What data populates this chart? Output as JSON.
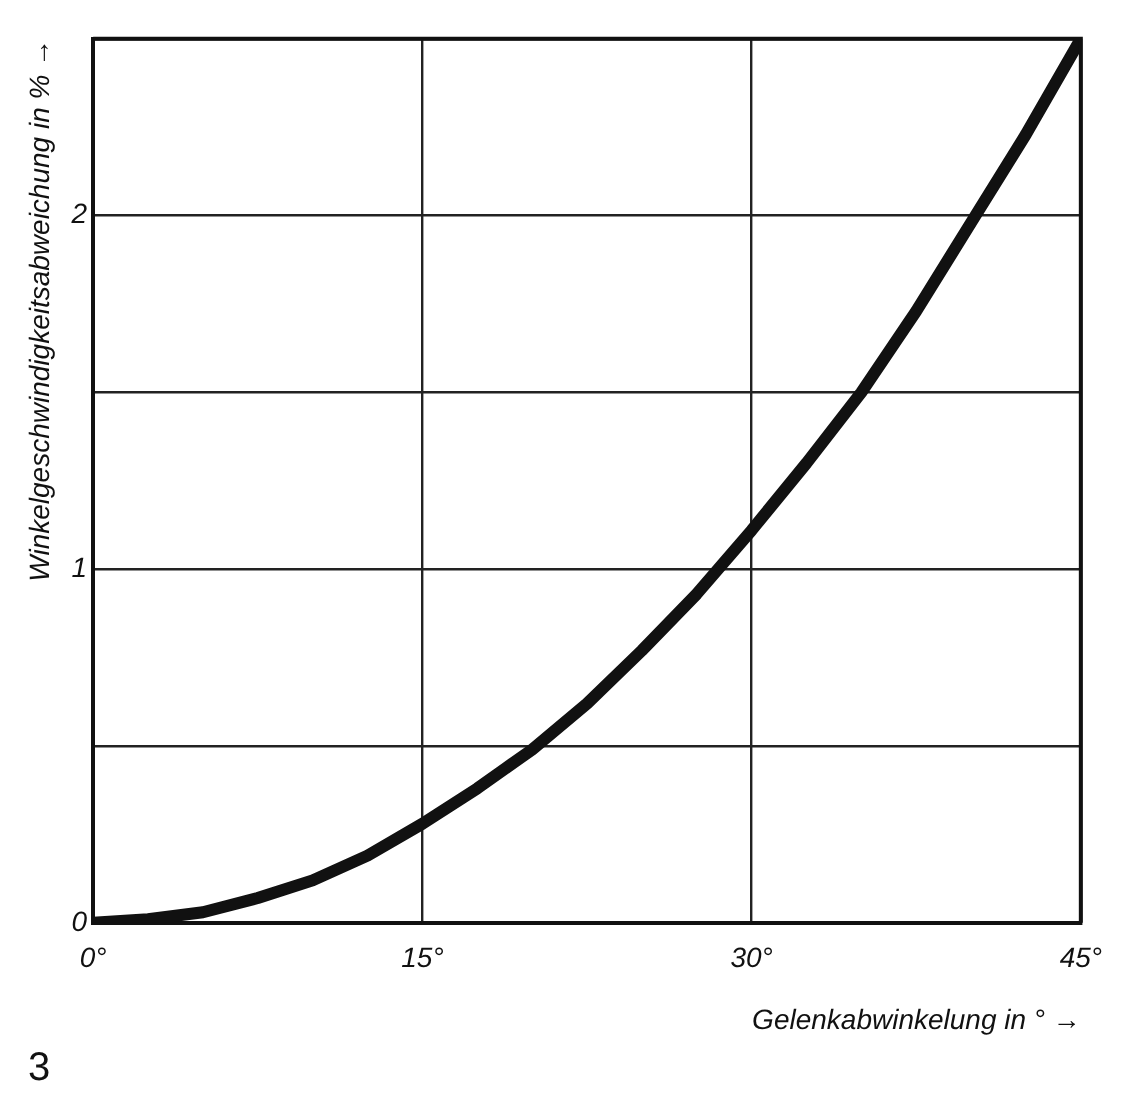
{
  "chart_data": {
    "type": "line",
    "xlabel": "Gelenkabwinkelung in ° →",
    "ylabel": "Winkelgeschwindigkeitsabweichung in % →",
    "annotations": [
      "3"
    ],
    "x": [
      0,
      2.5,
      5,
      7.5,
      10,
      12.5,
      15,
      17.5,
      20,
      22.5,
      25,
      27.5,
      30,
      32.5,
      35,
      37.5,
      40,
      42.5,
      45
    ],
    "series": [
      {
        "color": "#111111",
        "values": [
          0,
          0.01,
          0.03,
          0.07,
          0.12,
          0.19,
          0.28,
          0.38,
          0.49,
          0.62,
          0.77,
          0.93,
          1.11,
          1.3,
          1.5,
          1.73,
          1.98,
          2.23,
          2.5
        ]
      }
    ],
    "xlim": [
      0,
      45
    ],
    "xticks": [
      {
        "value": 0,
        "label": "0°"
      },
      {
        "value": 15,
        "label": "15°"
      },
      {
        "value": 30,
        "label": "30°"
      },
      {
        "value": 45,
        "label": "45°"
      }
    ],
    "ylim": [
      0,
      2.5
    ],
    "yticks": [
      0,
      {
        "value": 0.5,
        "label": null
      },
      1,
      {
        "value": 1.5,
        "label": null
      },
      2,
      {
        "value": 2.5,
        "label": null
      }
    ],
    "grid": true,
    "legend": false,
    "marker": "none",
    "line_style": "solid"
  }
}
